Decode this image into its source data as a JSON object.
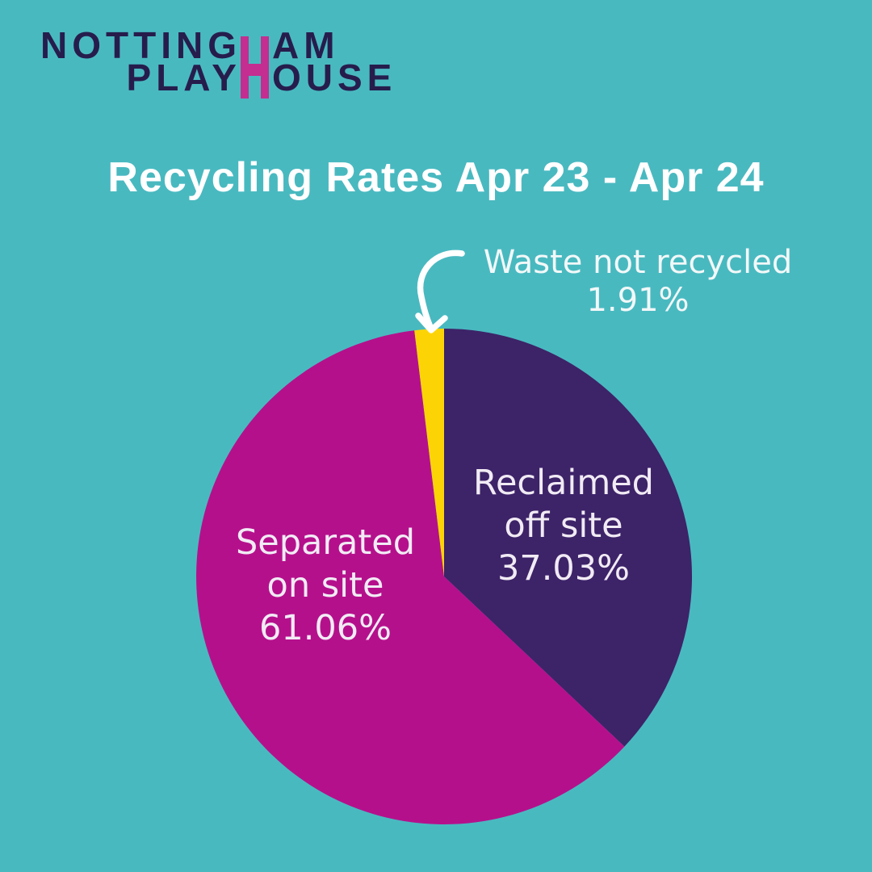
{
  "logo": {
    "line1_left": "NOTTING",
    "line1_right": "AM",
    "line2_left": "PLAY",
    "line2_right": "OUSE",
    "shared_letter": "H"
  },
  "chart_data": {
    "type": "pie",
    "title": "Recycling Rates Apr 23 - Apr 24",
    "direction": "clockwise",
    "start_angle_deg": 0,
    "legend": "none",
    "units": "percent",
    "slices": [
      {
        "label": "Reclaimed off site",
        "value": 37.03,
        "display": "37.03%",
        "color": "#3d2368",
        "label_placement": "inside",
        "label_lines": [
          "Reclaimed",
          "off site",
          "37.03%"
        ]
      },
      {
        "label": "Separated on site",
        "value": 61.06,
        "display": "61.06%",
        "color": "#b5108c",
        "label_placement": "inside",
        "label_lines": [
          "Separated",
          "on site",
          "61.06%"
        ]
      },
      {
        "label": "Waste not recycled",
        "value": 1.91,
        "display": "1.91%",
        "color": "#fcd405",
        "label_placement": "outside-with-arrow",
        "label_lines": [
          "Waste not recycled",
          "1.91%"
        ]
      }
    ]
  },
  "colors": {
    "background": "#49b9c0",
    "title_text": "#ffffff",
    "slice_label_text": "#f1ebf4",
    "annotation_text": "#f2f8f8",
    "logo_navy": "#261d4d",
    "logo_pink": "#c42e90",
    "arrow": "#ffffff"
  }
}
